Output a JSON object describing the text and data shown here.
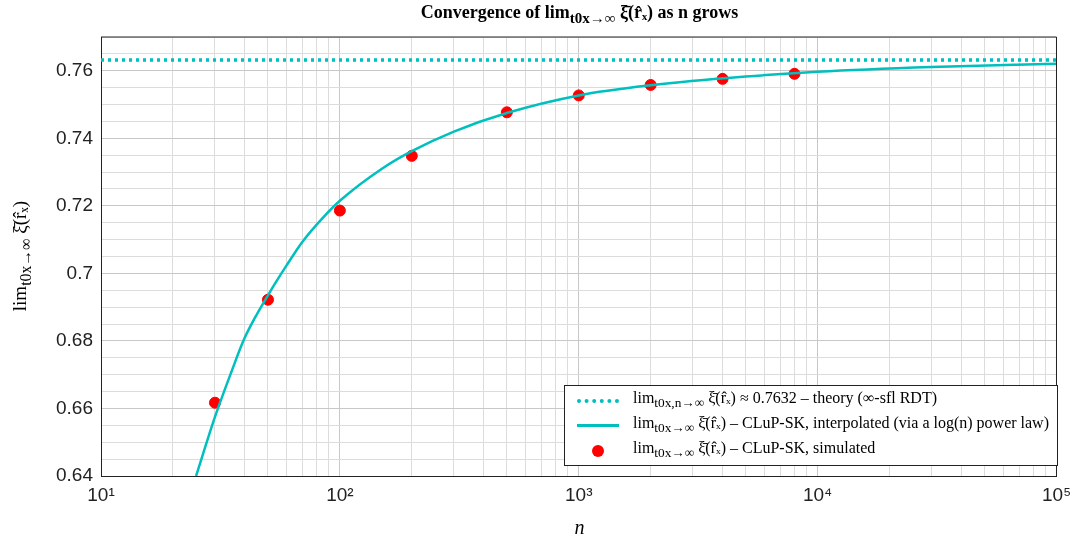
{
  "chart_data": {
    "type": "line",
    "title": "Convergence of lim$_{t0x→∞}$ ξ̄(r̂ₓ) as n grows",
    "xlabel": "n",
    "ylabel": "lim$_{t0x→∞}$ ξ̄(r̂ₓ)",
    "log": "x",
    "xlim": [
      10,
      100000
    ],
    "ylim": [
      0.64,
      0.77
    ],
    "xticks": [
      {
        "value": 10,
        "label": "10¹"
      },
      {
        "value": 20,
        "label": null
      },
      {
        "value": 30,
        "label": null
      },
      {
        "value": 40,
        "label": null
      },
      {
        "value": 50,
        "label": null
      },
      {
        "value": 60,
        "label": null
      },
      {
        "value": 70,
        "label": null
      },
      {
        "value": 80,
        "label": null
      },
      {
        "value": 90,
        "label": null
      },
      {
        "value": 100,
        "label": "10²"
      },
      {
        "value": 200,
        "label": null
      },
      {
        "value": 300,
        "label": null
      },
      {
        "value": 400,
        "label": null
      },
      {
        "value": 500,
        "label": null
      },
      {
        "value": 600,
        "label": null
      },
      {
        "value": 700,
        "label": null
      },
      {
        "value": 800,
        "label": null
      },
      {
        "value": 900,
        "label": null
      },
      {
        "value": 1000,
        "label": "10³"
      },
      {
        "value": 2000,
        "label": null
      },
      {
        "value": 3000,
        "label": null
      },
      {
        "value": 4000,
        "label": null
      },
      {
        "value": 5000,
        "label": null
      },
      {
        "value": 6000,
        "label": null
      },
      {
        "value": 7000,
        "label": null
      },
      {
        "value": 8000,
        "label": null
      },
      {
        "value": 9000,
        "label": null
      },
      {
        "value": 10000,
        "label": "10⁴"
      },
      {
        "value": 20000,
        "label": null
      },
      {
        "value": 30000,
        "label": null
      },
      {
        "value": 40000,
        "label": null
      },
      {
        "value": 50000,
        "label": null
      },
      {
        "value": 60000,
        "label": null
      },
      {
        "value": 70000,
        "label": null
      },
      {
        "value": 80000,
        "label": null
      },
      {
        "value": 90000,
        "label": null
      },
      {
        "value": 100000,
        "label": "10⁵"
      }
    ],
    "yticks": [
      0.64,
      {
        "value": 0.645,
        "label": null
      },
      {
        "value": 0.65,
        "label": null
      },
      {
        "value": 0.655,
        "label": null
      },
      0.66,
      {
        "value": 0.665,
        "label": null
      },
      {
        "value": 0.67,
        "label": null
      },
      {
        "value": 0.675,
        "label": null
      },
      0.68,
      {
        "value": 0.685,
        "label": null
      },
      {
        "value": 0.69,
        "label": null
      },
      {
        "value": 0.695,
        "label": null
      },
      0.7,
      {
        "value": 0.705,
        "label": null
      },
      {
        "value": 0.71,
        "label": null
      },
      {
        "value": 0.715,
        "label": null
      },
      0.72,
      {
        "value": 0.725,
        "label": null
      },
      {
        "value": 0.73,
        "label": null
      },
      {
        "value": 0.735,
        "label": null
      },
      0.74,
      {
        "value": 0.745,
        "label": null
      },
      {
        "value": 0.75,
        "label": null
      },
      {
        "value": 0.755,
        "label": null
      },
      0.76,
      {
        "value": 0.765,
        "label": null
      },
      {
        "value": 0.77,
        "label": null
      }
    ],
    "grid": true,
    "legend": "bottom right",
    "series": [
      {
        "name": "lim$_{t0x,n→∞}$ ξ̄(r̂ₓ) ≈ 0.7632 – theory (∞-sfl RDT)",
        "type": "line",
        "line_style": "dotted",
        "marker": "none",
        "color": "#00bfbf",
        "x": [
          10,
          100000
        ],
        "values": [
          0.7632,
          0.7632
        ]
      },
      {
        "name": "lim$_{t0x→∞}$ ξ̄(r̂ₓ) – CLuP-SK, interpolated (via a log(n) power law)",
        "type": "line",
        "line_style": "solid",
        "marker": "none",
        "color": "#00bfbf",
        "x": [
          25,
          30,
          35,
          40,
          50,
          60,
          70,
          85,
          100,
          150,
          200,
          300,
          500,
          1000,
          2000,
          5000,
          10000,
          30000,
          100000
        ],
        "values": [
          0.64,
          0.6575,
          0.6705,
          0.681,
          0.6935,
          0.7025,
          0.7095,
          0.7165,
          0.7215,
          0.731,
          0.7362,
          0.742,
          0.7475,
          0.7527,
          0.7557,
          0.7583,
          0.7597,
          0.7611,
          0.7621
        ]
      },
      {
        "name": "lim$_{t0x→∞}$ ξ̄(r̂ₓ) – CLuP-SK, simulated",
        "type": "scatter",
        "marker": "circle",
        "color": "#ff0000",
        "x": [
          30,
          50,
          100,
          200,
          500,
          1000,
          2000,
          4000,
          8000
        ],
        "values": [
          0.6617,
          0.6922,
          0.7186,
          0.7348,
          0.7477,
          0.7527,
          0.7558,
          0.7576,
          0.7591
        ]
      }
    ]
  }
}
